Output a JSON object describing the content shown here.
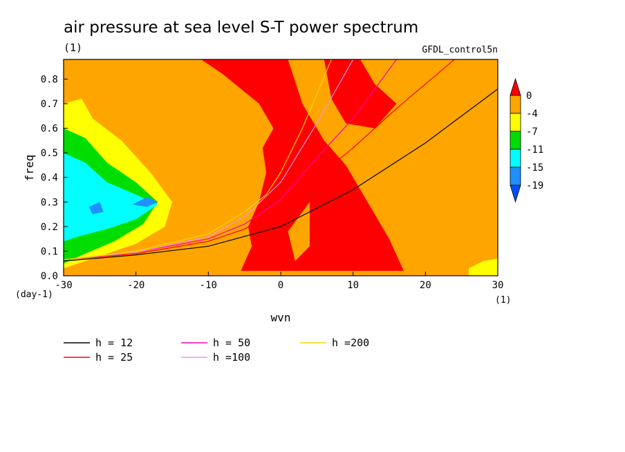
{
  "chart_data": {
    "type": "heatmap",
    "title": "air pressure at sea level S-T power spectrum",
    "subtitle": "(1)",
    "source_label": "GFDL_control5n",
    "xlabel": "wvn",
    "ylabel": "freq",
    "x_unit": "(1)",
    "y_unit": "(day-1)",
    "xlim": [
      -30,
      30
    ],
    "ylim": [
      0,
      0.88
    ],
    "x_ticks": [
      -30,
      -20,
      -10,
      0,
      10,
      20,
      30
    ],
    "y_ticks": [
      0.0,
      0.1,
      0.2,
      0.3,
      0.4,
      0.5,
      0.6,
      0.7,
      0.8
    ],
    "colorbar": {
      "labels": [
        "0",
        "-4",
        "-7",
        "-11",
        "-15",
        "-19"
      ],
      "colors": [
        "#ff0000",
        "#ffa500",
        "#ffff00",
        "#00dd00",
        "#00ffff",
        "#1e90ff",
        "#0050ff"
      ]
    },
    "regions": [
      {
        "level": "orange",
        "points": [
          [
            -30,
            0
          ],
          [
            30,
            0
          ],
          [
            30,
            0.88
          ],
          [
            -30,
            0.88
          ]
        ]
      },
      {
        "level": "red",
        "points": [
          [
            -5.5,
            0.02
          ],
          [
            -4,
            0.12
          ],
          [
            -4.5,
            0.2
          ],
          [
            -3,
            0.3
          ],
          [
            -2,
            0.42
          ],
          [
            -2.5,
            0.52
          ],
          [
            -1,
            0.6
          ],
          [
            -3,
            0.7
          ],
          [
            -8,
            0.82
          ],
          [
            -11,
            0.88
          ],
          [
            1,
            0.88
          ],
          [
            3,
            0.7
          ],
          [
            6,
            0.55
          ],
          [
            9,
            0.45
          ],
          [
            12,
            0.3
          ],
          [
            15,
            0.15
          ],
          [
            17,
            0.02
          ]
        ]
      },
      {
        "level": "red",
        "points": [
          [
            6,
            0.88
          ],
          [
            11,
            0.88
          ],
          [
            13,
            0.78
          ],
          [
            16,
            0.7
          ],
          [
            13,
            0.6
          ],
          [
            9,
            0.62
          ],
          [
            7,
            0.72
          ]
        ]
      },
      {
        "level": "orange",
        "points": [
          [
            1,
            0.18
          ],
          [
            4,
            0.3
          ],
          [
            4,
            0.12
          ],
          [
            2,
            0.06
          ]
        ]
      },
      {
        "level": "yellow",
        "points": [
          [
            -30,
            0.03
          ],
          [
            -30,
            0.7
          ],
          [
            -27.5,
            0.72
          ],
          [
            -26,
            0.64
          ],
          [
            -22,
            0.55
          ],
          [
            -18,
            0.42
          ],
          [
            -15,
            0.3
          ],
          [
            -16,
            0.2
          ],
          [
            -20,
            0.13
          ],
          [
            -25,
            0.08
          ]
        ]
      },
      {
        "level": "green",
        "points": [
          [
            -30,
            0.05
          ],
          [
            -30,
            0.6
          ],
          [
            -27,
            0.56
          ],
          [
            -24,
            0.46
          ],
          [
            -20,
            0.38
          ],
          [
            -17,
            0.3
          ],
          [
            -19,
            0.21
          ],
          [
            -23,
            0.14
          ],
          [
            -27,
            0.09
          ]
        ]
      },
      {
        "level": "cyan",
        "points": [
          [
            -30,
            0.14
          ],
          [
            -30,
            0.5
          ],
          [
            -27,
            0.46
          ],
          [
            -24,
            0.38
          ],
          [
            -20,
            0.33
          ],
          [
            -17,
            0.29
          ],
          [
            -20,
            0.23
          ],
          [
            -24,
            0.19
          ],
          [
            -28,
            0.16
          ]
        ]
      },
      {
        "level": "blue",
        "points": [
          [
            -20.5,
            0.29
          ],
          [
            -18.5,
            0.32
          ],
          [
            -17,
            0.3
          ],
          [
            -18.5,
            0.28
          ]
        ]
      },
      {
        "level": "blue",
        "points": [
          [
            -26.5,
            0.28
          ],
          [
            -25,
            0.3
          ],
          [
            -24.5,
            0.26
          ],
          [
            -26,
            0.25
          ]
        ]
      },
      {
        "level": "yellow",
        "points": [
          [
            26,
            0.0
          ],
          [
            30,
            0.0
          ],
          [
            30,
            0.07
          ],
          [
            28,
            0.06
          ],
          [
            26,
            0.03
          ]
        ]
      }
    ],
    "series": [
      {
        "name": "h = 12",
        "color": "#000000",
        "points": [
          [
            -30,
            0.06
          ],
          [
            -20,
            0.085
          ],
          [
            -10,
            0.12
          ],
          [
            -5,
            0.16
          ],
          [
            0,
            0.2
          ],
          [
            10,
            0.35
          ],
          [
            20,
            0.54
          ],
          [
            30,
            0.76
          ]
        ]
      },
      {
        "name": "h = 25",
        "color": "#ff0000",
        "points": [
          [
            -30,
            0.065
          ],
          [
            -20,
            0.09
          ],
          [
            -10,
            0.14
          ],
          [
            -5,
            0.19
          ],
          [
            0,
            0.27
          ],
          [
            5,
            0.4
          ],
          [
            10,
            0.52
          ],
          [
            16,
            0.68
          ],
          [
            24,
            0.88
          ]
        ]
      },
      {
        "name": "h = 50",
        "color": "#ff00aa",
        "points": [
          [
            -30,
            0.065
          ],
          [
            -20,
            0.095
          ],
          [
            -10,
            0.15
          ],
          [
            -5,
            0.21
          ],
          [
            0,
            0.31
          ],
          [
            5,
            0.48
          ],
          [
            10,
            0.64
          ],
          [
            16,
            0.88
          ]
        ]
      },
      {
        "name": "h =100",
        "color": "#e699e6",
        "points": [
          [
            -30,
            0.065
          ],
          [
            -20,
            0.095
          ],
          [
            -10,
            0.16
          ],
          [
            -5,
            0.24
          ],
          [
            0,
            0.38
          ],
          [
            5,
            0.62
          ],
          [
            10,
            0.88
          ]
        ]
      },
      {
        "name": "h =200",
        "color": "#ffd400",
        "points": [
          [
            -30,
            0.065
          ],
          [
            -20,
            0.1
          ],
          [
            -10,
            0.17
          ],
          [
            -5,
            0.26
          ],
          [
            -2,
            0.33
          ],
          [
            0,
            0.42
          ],
          [
            3,
            0.6
          ],
          [
            7,
            0.88
          ]
        ]
      }
    ]
  }
}
